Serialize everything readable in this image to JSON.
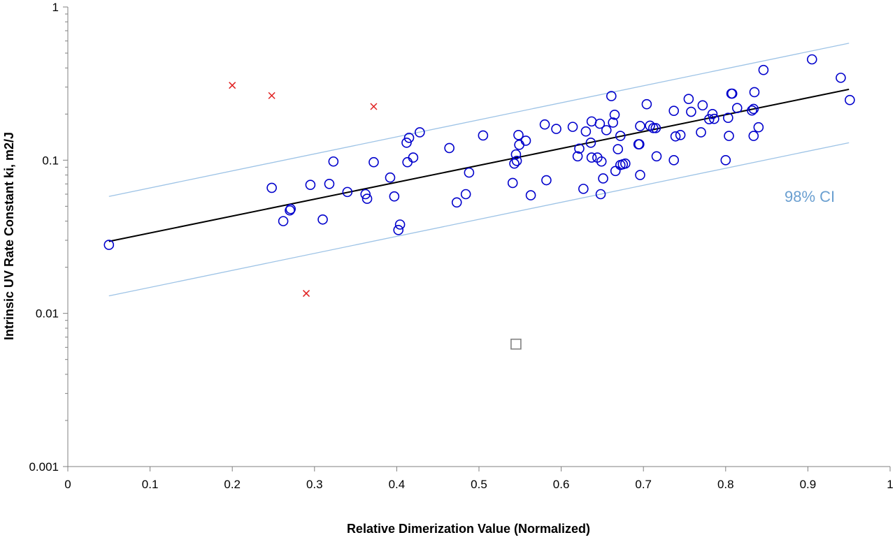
{
  "chart_data": {
    "type": "scatter",
    "title": "",
    "xlabel": "Relative Dimerization Value (Normalized)",
    "ylabel": "Intrinsic UV Rate Constant ki, m2/J",
    "xlim": [
      0,
      1
    ],
    "ylim": [
      0.001,
      1
    ],
    "yscale": "log",
    "grid": false,
    "x_ticks": [
      "0",
      "0.1",
      "0.2",
      "0.3",
      "0.4",
      "0.5",
      "0.6",
      "0.7",
      "0.8",
      "0.9",
      "1"
    ],
    "y_ticks": [
      "1",
      "0.1",
      "0.01",
      "0.001"
    ],
    "annotation": "98% CI",
    "colors": {
      "circles": "#0000cc",
      "crosses": "#e02020",
      "square": "#808080",
      "fit_line": "#000000",
      "ci_lines": "#9dc3e6",
      "ci_label": "#6a9fd0",
      "axis": "#808080"
    },
    "series": [
      {
        "marker": "circle",
        "points": [
          [
            0.05,
            0.028
          ],
          [
            0.248,
            0.066
          ],
          [
            0.262,
            0.04
          ],
          [
            0.27,
            0.047
          ],
          [
            0.271,
            0.048
          ],
          [
            0.295,
            0.069
          ],
          [
            0.31,
            0.041
          ],
          [
            0.318,
            0.07
          ],
          [
            0.323,
            0.098
          ],
          [
            0.34,
            0.062
          ],
          [
            0.362,
            0.06
          ],
          [
            0.364,
            0.056
          ],
          [
            0.372,
            0.097
          ],
          [
            0.392,
            0.077
          ],
          [
            0.397,
            0.058
          ],
          [
            0.402,
            0.035
          ],
          [
            0.404,
            0.038
          ],
          [
            0.412,
            0.13
          ],
          [
            0.413,
            0.097
          ],
          [
            0.415,
            0.14
          ],
          [
            0.42,
            0.104
          ],
          [
            0.428,
            0.152
          ],
          [
            0.464,
            0.12
          ],
          [
            0.473,
            0.053
          ],
          [
            0.484,
            0.06
          ],
          [
            0.488,
            0.083
          ],
          [
            0.505,
            0.145
          ],
          [
            0.541,
            0.071
          ],
          [
            0.543,
            0.095
          ],
          [
            0.545,
            0.109
          ],
          [
            0.546,
            0.099
          ],
          [
            0.548,
            0.146
          ],
          [
            0.549,
            0.126
          ],
          [
            0.557,
            0.134
          ],
          [
            0.563,
            0.059
          ],
          [
            0.58,
            0.171
          ],
          [
            0.582,
            0.074
          ],
          [
            0.594,
            0.16
          ],
          [
            0.614,
            0.165
          ],
          [
            0.62,
            0.106
          ],
          [
            0.622,
            0.119
          ],
          [
            0.627,
            0.065
          ],
          [
            0.63,
            0.154
          ],
          [
            0.636,
            0.13
          ],
          [
            0.637,
            0.104
          ],
          [
            0.637,
            0.179
          ],
          [
            0.644,
            0.104
          ],
          [
            0.647,
            0.173
          ],
          [
            0.648,
            0.06
          ],
          [
            0.649,
            0.098
          ],
          [
            0.651,
            0.076
          ],
          [
            0.655,
            0.157
          ],
          [
            0.661,
            0.262
          ],
          [
            0.663,
            0.176
          ],
          [
            0.665,
            0.198
          ],
          [
            0.666,
            0.085
          ],
          [
            0.669,
            0.118
          ],
          [
            0.672,
            0.093
          ],
          [
            0.672,
            0.144
          ],
          [
            0.675,
            0.094
          ],
          [
            0.678,
            0.095
          ],
          [
            0.694,
            0.127
          ],
          [
            0.695,
            0.127
          ],
          [
            0.696,
            0.08
          ],
          [
            0.696,
            0.167
          ],
          [
            0.704,
            0.232
          ],
          [
            0.708,
            0.168
          ],
          [
            0.712,
            0.162
          ],
          [
            0.715,
            0.162
          ],
          [
            0.716,
            0.106
          ],
          [
            0.737,
            0.1
          ],
          [
            0.737,
            0.21
          ],
          [
            0.739,
            0.143
          ],
          [
            0.745,
            0.146
          ],
          [
            0.755,
            0.251
          ],
          [
            0.758,
            0.207
          ],
          [
            0.77,
            0.152
          ],
          [
            0.772,
            0.228
          ],
          [
            0.78,
            0.185
          ],
          [
            0.784,
            0.2
          ],
          [
            0.786,
            0.186
          ],
          [
            0.8,
            0.1
          ],
          [
            0.803,
            0.189
          ],
          [
            0.804,
            0.144
          ],
          [
            0.807,
            0.272
          ],
          [
            0.808,
            0.272
          ],
          [
            0.814,
            0.219
          ],
          [
            0.832,
            0.211
          ],
          [
            0.834,
            0.216
          ],
          [
            0.834,
            0.144
          ],
          [
            0.835,
            0.278
          ],
          [
            0.84,
            0.164
          ],
          [
            0.846,
            0.388
          ],
          [
            0.905,
            0.455
          ],
          [
            0.94,
            0.345
          ],
          [
            0.951,
            0.247
          ]
        ]
      },
      {
        "marker": "cross",
        "points": [
          [
            0.2,
            0.308
          ],
          [
            0.248,
            0.264
          ],
          [
            0.29,
            0.0135
          ],
          [
            0.372,
            0.224
          ]
        ]
      },
      {
        "marker": "square",
        "points": [
          [
            0.545,
            0.0063
          ]
        ]
      }
    ],
    "fit_line": [
      [
        0.05,
        0.0295
      ],
      [
        0.95,
        0.29
      ]
    ],
    "ci_upper": [
      [
        0.05,
        0.058
      ],
      [
        0.95,
        0.58
      ]
    ],
    "ci_lower": [
      [
        0.05,
        0.013
      ],
      [
        0.95,
        0.13
      ]
    ]
  }
}
